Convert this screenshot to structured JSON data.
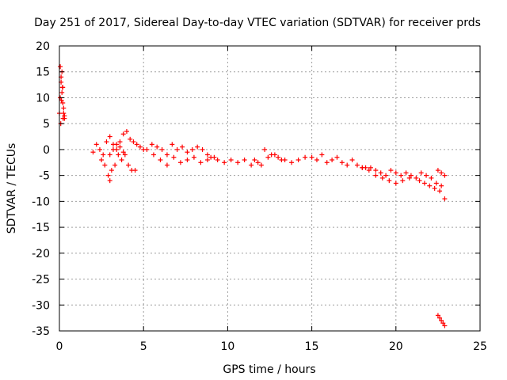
{
  "chart_data": {
    "type": "scatter",
    "title": "Day 251 of 2017, Sidereal Day-to-day VTEC variation (SDTVAR) for receiver prds",
    "xlabel": "GPS time / hours",
    "ylabel": "SDTVAR / TECUs",
    "xlim": [
      0,
      25
    ],
    "ylim": [
      -35,
      20
    ],
    "xticks": [
      0,
      5,
      10,
      15,
      20,
      25
    ],
    "yticks": [
      20,
      15,
      10,
      5,
      0,
      -5,
      -10,
      -15,
      -20,
      -25,
      -30,
      -35
    ],
    "grid": true,
    "marker": "+",
    "color": "#ff0000",
    "series": [
      {
        "name": "SDTVAR",
        "x": [
          0.0,
          0.05,
          0.1,
          0.15,
          0.2,
          0.25,
          0.3,
          0.05,
          0.1,
          0.15,
          0.2,
          0.25,
          0.3,
          0.08,
          0.12,
          0.18,
          0.22,
          2.0,
          2.2,
          2.4,
          2.6,
          2.8,
          3.0,
          3.2,
          3.4,
          3.6,
          3.8,
          4.0,
          4.2,
          4.4,
          4.6,
          4.8,
          5.0,
          2.5,
          2.7,
          2.9,
          3.0,
          3.1,
          3.3,
          3.5,
          3.7,
          3.9,
          4.1,
          4.3,
          4.5,
          3.0,
          3.2,
          3.4,
          3.6,
          3.8,
          5.2,
          5.5,
          5.8,
          6.1,
          6.4,
          6.7,
          7.0,
          7.3,
          7.6,
          7.9,
          8.2,
          8.5,
          8.8,
          5.6,
          6.0,
          6.4,
          6.8,
          7.2,
          7.6,
          8.0,
          8.4,
          8.8,
          9.2,
          9.0,
          9.4,
          9.8,
          10.2,
          10.6,
          11.0,
          11.4,
          11.8,
          12.2,
          12.6,
          13.0,
          13.4,
          13.8,
          14.2,
          14.6,
          11.6,
          12.0,
          12.4,
          12.8,
          13.2,
          15.0,
          15.3,
          15.6,
          15.9,
          16.2,
          16.5,
          16.8,
          17.1,
          17.4,
          17.7,
          18.0,
          18.2,
          18.5,
          18.8,
          19.1,
          19.4,
          19.7,
          20.0,
          20.3,
          20.6,
          20.9,
          21.2,
          21.5,
          18.0,
          18.4,
          18.8,
          19.2,
          19.6,
          20.0,
          20.4,
          20.8,
          21.4,
          21.7,
          22.0,
          22.3,
          22.6,
          22.9,
          21.8,
          22.1,
          22.4,
          22.7,
          22.5,
          22.7,
          22.9,
          22.5,
          22.6,
          22.7,
          22.8,
          22.9
        ],
        "y": [
          7,
          10,
          13,
          15,
          12,
          8,
          6,
          16,
          14,
          11,
          9,
          7,
          6.5,
          5,
          9.5,
          12,
          6,
          -0.5,
          1,
          0,
          -1,
          1.5,
          2.5,
          1,
          0,
          1.5,
          3,
          3.5,
          2,
          1.5,
          1,
          0.5,
          0,
          -2,
          -3,
          -5,
          -6,
          -4,
          -3,
          -1,
          -2,
          -1,
          -3,
          -4,
          -4,
          -1,
          0,
          1,
          0.5,
          -0.5,
          0,
          1,
          0.5,
          0,
          -1,
          1,
          0,
          0.5,
          -0.5,
          0,
          0.5,
          0,
          -1,
          -1,
          -2,
          -3,
          -1.5,
          -2.5,
          -2,
          -1.5,
          -2.5,
          -2,
          -1.5,
          -1.5,
          -2,
          -2.5,
          -2,
          -2.5,
          -2,
          -3,
          -2.5,
          0,
          -1,
          -1.5,
          -2,
          -2.5,
          -2,
          -1.5,
          -2,
          -3,
          -1.5,
          -1,
          -2,
          -1.5,
          -2,
          -1,
          -2.5,
          -2,
          -1.5,
          -2.5,
          -3,
          -2,
          -3,
          -3.5,
          -3.5,
          -3.5,
          -4,
          -4.5,
          -5,
          -4,
          -4.5,
          -5,
          -4.5,
          -5,
          -5.5,
          -4.5,
          -3.5,
          -4,
          -5,
          -5.5,
          -6,
          -6.5,
          -6,
          -5.5,
          -6,
          -6.5,
          -7,
          -7.5,
          -8,
          -9.5,
          -5,
          -5.5,
          -6.5,
          -7,
          -4,
          -4.5,
          -5,
          -32,
          -32.5,
          -33,
          -33.5,
          -34
        ]
      }
    ]
  }
}
